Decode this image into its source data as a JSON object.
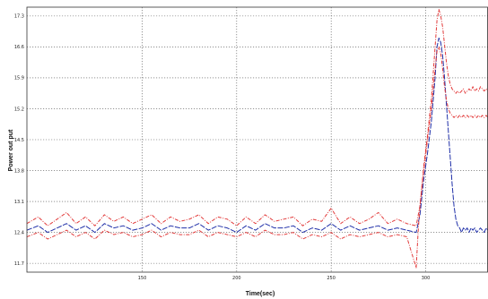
{
  "chart_data": {
    "type": "line",
    "xlabel": "Time(sec)",
    "ylabel": "Power out put",
    "xlim": [
      89,
      333
    ],
    "ylim": [
      11.5,
      17.5
    ],
    "grid": true,
    "x_ticks": [
      150,
      200,
      250,
      300
    ],
    "x_tick_labels": [
      "150",
      "200",
      "250",
      "300"
    ],
    "y_ticks": [
      11.7,
      12.4,
      13.1,
      13.8,
      14.5,
      15.2,
      15.9,
      16.6,
      17.3
    ],
    "y_tick_labels": [
      "11.7",
      "12.4",
      "13.1",
      "13.8",
      "14.5",
      "15.2",
      "15.9",
      "16.6",
      "17.3"
    ],
    "colors": {
      "upper": "#e23a3a",
      "mean": "#1f2fa8",
      "lower": "#e23a3a",
      "grid": "#555555",
      "frame": "#333333"
    },
    "series": [
      {
        "key": "upper",
        "style": "dash-dot",
        "x": [
          89,
          95,
          100,
          105,
          110,
          115,
          120,
          125,
          130,
          135,
          140,
          145,
          150,
          155,
          160,
          165,
          170,
          175,
          180,
          185,
          190,
          195,
          200,
          205,
          210,
          215,
          220,
          225,
          230,
          235,
          240,
          245,
          250,
          255,
          260,
          265,
          270,
          275,
          280,
          285,
          290,
          295,
          297,
          299,
          301,
          303,
          305,
          306,
          307,
          308,
          309,
          310,
          311,
          312,
          313,
          314,
          315,
          316,
          317,
          318,
          319,
          320,
          321,
          322,
          323,
          324,
          325,
          326,
          327,
          328,
          329,
          330,
          331,
          332,
          333
        ],
        "y": [
          12.6,
          12.75,
          12.55,
          12.7,
          12.85,
          12.6,
          12.75,
          12.55,
          12.8,
          12.65,
          12.75,
          12.6,
          12.7,
          12.8,
          12.6,
          12.75,
          12.65,
          12.7,
          12.8,
          12.6,
          12.75,
          12.7,
          12.55,
          12.75,
          12.6,
          12.8,
          12.65,
          12.7,
          12.75,
          12.55,
          12.7,
          12.65,
          12.95,
          12.6,
          12.75,
          12.6,
          12.7,
          12.85,
          12.6,
          12.7,
          12.6,
          12.55,
          13.0,
          13.9,
          14.6,
          15.4,
          16.6,
          17.2,
          17.45,
          17.3,
          17.05,
          16.65,
          16.25,
          15.95,
          15.75,
          15.65,
          15.6,
          15.55,
          15.6,
          15.55,
          15.6,
          15.65,
          15.55,
          15.6,
          15.65,
          15.6,
          15.7,
          15.6,
          15.65,
          15.6,
          15.7,
          15.65,
          15.6,
          15.65,
          15.6
        ]
      },
      {
        "key": "mean",
        "style": "solid-dashed",
        "x": [
          89,
          95,
          100,
          105,
          110,
          115,
          120,
          125,
          130,
          135,
          140,
          145,
          150,
          155,
          160,
          165,
          170,
          175,
          180,
          185,
          190,
          195,
          200,
          205,
          210,
          215,
          220,
          225,
          230,
          235,
          240,
          245,
          250,
          255,
          260,
          265,
          270,
          275,
          280,
          285,
          290,
          295,
          297,
          299,
          301,
          303,
          305,
          306,
          307,
          308,
          309,
          310,
          311,
          312,
          313,
          314,
          315,
          316,
          317,
          318,
          319,
          320,
          321,
          322,
          323,
          324,
          325,
          326,
          327,
          328,
          329,
          330,
          331,
          332,
          333
        ],
        "y": [
          12.45,
          12.55,
          12.4,
          12.5,
          12.6,
          12.45,
          12.55,
          12.4,
          12.6,
          12.5,
          12.55,
          12.45,
          12.5,
          12.6,
          12.45,
          12.55,
          12.5,
          12.5,
          12.6,
          12.45,
          12.55,
          12.5,
          12.4,
          12.55,
          12.45,
          12.6,
          12.5,
          12.5,
          12.55,
          12.4,
          12.5,
          12.45,
          12.6,
          12.45,
          12.55,
          12.45,
          12.5,
          12.55,
          12.45,
          12.5,
          12.45,
          12.4,
          12.8,
          13.6,
          14.2,
          14.9,
          15.9,
          16.6,
          16.8,
          16.7,
          16.4,
          15.9,
          15.3,
          14.7,
          14.1,
          13.5,
          13.0,
          12.7,
          12.55,
          12.5,
          12.4,
          12.5,
          12.45,
          12.5,
          12.4,
          12.5,
          12.45,
          12.5,
          12.4,
          12.45,
          12.5,
          12.45,
          12.4,
          12.5,
          12.45
        ]
      },
      {
        "key": "lower",
        "style": "dash-dot",
        "x": [
          89,
          95,
          100,
          105,
          110,
          115,
          120,
          125,
          130,
          135,
          140,
          145,
          150,
          155,
          160,
          165,
          170,
          175,
          180,
          185,
          190,
          195,
          200,
          205,
          210,
          215,
          220,
          225,
          230,
          235,
          240,
          245,
          250,
          255,
          260,
          265,
          270,
          275,
          280,
          285,
          290,
          295,
          296,
          297,
          299,
          301,
          303,
          305,
          306,
          307,
          308,
          309,
          310,
          311,
          312,
          313,
          314,
          315,
          316,
          317,
          318,
          319,
          320,
          321,
          322,
          323,
          324,
          325,
          326,
          327,
          328,
          329,
          330,
          331,
          332,
          333
        ],
        "y": [
          12.3,
          12.4,
          12.25,
          12.35,
          12.45,
          12.3,
          12.4,
          12.25,
          12.45,
          12.35,
          12.4,
          12.3,
          12.35,
          12.45,
          12.3,
          12.4,
          12.35,
          12.35,
          12.45,
          12.3,
          12.4,
          12.35,
          12.3,
          12.4,
          12.3,
          12.45,
          12.35,
          12.35,
          12.4,
          12.25,
          12.35,
          12.3,
          12.4,
          12.25,
          12.35,
          12.3,
          12.35,
          12.4,
          12.3,
          12.35,
          12.3,
          11.6,
          12.4,
          13.0,
          13.8,
          14.5,
          15.2,
          16.1,
          16.5,
          16.6,
          16.45,
          16.1,
          15.7,
          15.4,
          15.2,
          15.1,
          15.05,
          15.0,
          15.05,
          15.0,
          15.05,
          15.0,
          15.05,
          15.0,
          15.05,
          15.0,
          15.05,
          15.0,
          15.05,
          15.0,
          15.05,
          15.0,
          15.05,
          15.0,
          15.05,
          15.0
        ]
      }
    ]
  }
}
